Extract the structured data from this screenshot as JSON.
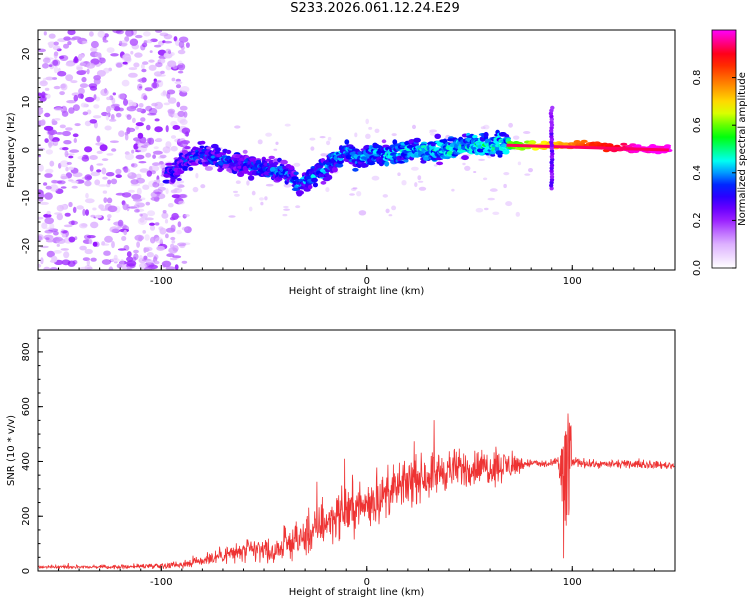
{
  "title": "S233.2026.061.12.24.E29",
  "chart_data": [
    {
      "type": "heatmap",
      "xlabel": "Height of straight line (km)",
      "ylabel": "Frequency (Hz)",
      "xlim": [
        -160,
        150
      ],
      "ylim": [
        -25,
        25
      ],
      "xticks": [
        -100,
        0,
        100
      ],
      "yticks": [
        -20,
        -10,
        0,
        10,
        20
      ],
      "ridge": {
        "x": [
          -95,
          -88,
          -80,
          -70,
          -60,
          -50,
          -40,
          -33,
          -28,
          -20,
          -15,
          -10,
          -5,
          0,
          10,
          20,
          30,
          40,
          50,
          60,
          70,
          80,
          90,
          100,
          110,
          120,
          130,
          148
        ],
        "freq": [
          -5,
          -2,
          -1,
          -2,
          -3,
          -4,
          -5,
          -7,
          -6,
          -4,
          -2,
          0,
          -2,
          -1,
          -1,
          0,
          0,
          0,
          1,
          1,
          1,
          1,
          1,
          1,
          1,
          0.5,
          0.3,
          0
        ]
      },
      "noise_region_x": [
        -160,
        -95
      ],
      "spike_x": 90,
      "colorbar": {
        "label": "Normalized spectral amplitude",
        "ticks": [
          0.0,
          0.2,
          0.4,
          0.6,
          0.8
        ],
        "range": [
          0,
          1
        ],
        "colors": [
          "#ffffff",
          "#d9a8ff",
          "#8b00ff",
          "#0000ff",
          "#00ffff",
          "#00ff00",
          "#ffff00",
          "#ff7f00",
          "#ff0000",
          "#ff00ff"
        ]
      }
    },
    {
      "type": "line",
      "xlabel": "Height of straight line (km)",
      "ylabel": "SNR (10 * v/v)",
      "xlim": [
        -160,
        150
      ],
      "ylim": [
        0,
        880
      ],
      "xticks": [
        -100,
        0,
        100
      ],
      "yticks": [
        0,
        200,
        400,
        600,
        800
      ],
      "color": "#ee3333",
      "envelope": {
        "x": [
          -160,
          -120,
          -100,
          -90,
          -80,
          -70,
          -60,
          -50,
          -45,
          -40,
          -30,
          -20,
          -10,
          0,
          10,
          20,
          30,
          40,
          50,
          60,
          70,
          75,
          80,
          85,
          90,
          93,
          95,
          96,
          97,
          98,
          100,
          110,
          120,
          130,
          150
        ],
        "mean": [
          15,
          15,
          20,
          25,
          40,
          60,
          70,
          80,
          60,
          100,
          120,
          180,
          220,
          240,
          280,
          320,
          350,
          370,
          375,
          380,
          385,
          390,
          395,
          390,
          390,
          400,
          380,
          200,
          300,
          420,
          400,
          390,
          390,
          390,
          385
        ],
        "amp": [
          8,
          10,
          15,
          20,
          35,
          50,
          60,
          70,
          40,
          80,
          100,
          120,
          130,
          120,
          120,
          120,
          120,
          110,
          100,
          100,
          80,
          40,
          20,
          20,
          20,
          30,
          300,
          500,
          500,
          400,
          30,
          20,
          20,
          20,
          20
        ]
      }
    }
  ]
}
